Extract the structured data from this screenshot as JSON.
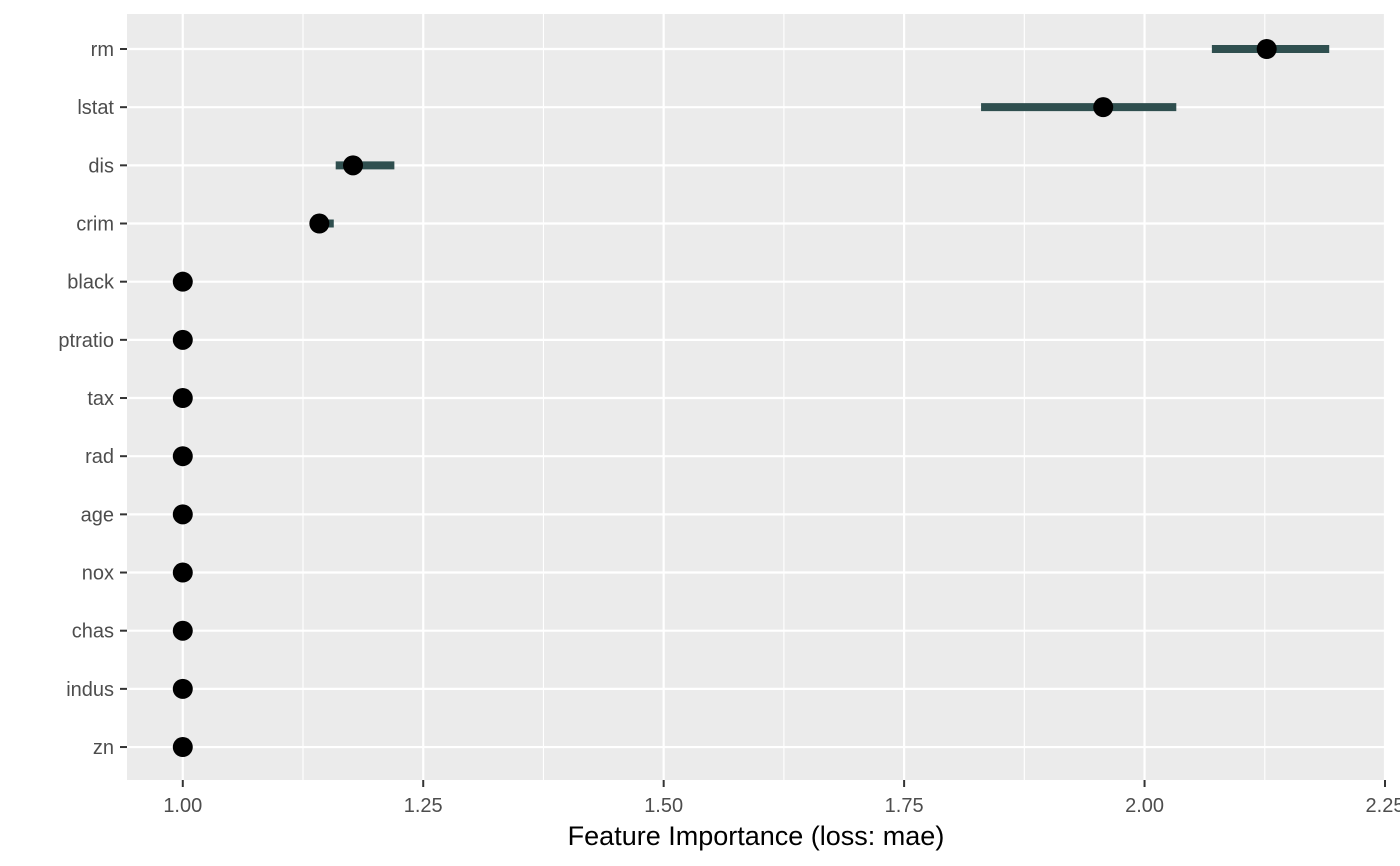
{
  "chart_data": {
    "type": "scatter",
    "title": "",
    "xlabel": "Feature Importance (loss: mae)",
    "ylabel": "",
    "xlim": [
      0.942,
      2.25
    ],
    "x_ticks": [
      1.0,
      1.25,
      1.5,
      1.75,
      2.0,
      2.25
    ],
    "x_tick_labels": [
      "1.00",
      "1.25",
      "1.50",
      "1.75",
      "2.00",
      "2.25"
    ],
    "grid": true,
    "legend": "none",
    "features": [
      {
        "name": "rm",
        "importance": 2.127,
        "lower": 2.07,
        "upper": 2.192
      },
      {
        "name": "lstat",
        "importance": 1.957,
        "lower": 1.83,
        "upper": 2.033
      },
      {
        "name": "dis",
        "importance": 1.177,
        "lower": 1.159,
        "upper": 1.22
      },
      {
        "name": "crim",
        "importance": 1.142,
        "lower": 1.14,
        "upper": 1.157
      },
      {
        "name": "black",
        "importance": 1.0,
        "lower": 1.0,
        "upper": 1.0
      },
      {
        "name": "ptratio",
        "importance": 1.0,
        "lower": 1.0,
        "upper": 1.0
      },
      {
        "name": "tax",
        "importance": 1.0,
        "lower": 1.0,
        "upper": 1.0
      },
      {
        "name": "rad",
        "importance": 1.0,
        "lower": 1.0,
        "upper": 1.0
      },
      {
        "name": "age",
        "importance": 1.0,
        "lower": 1.0,
        "upper": 1.0
      },
      {
        "name": "nox",
        "importance": 1.0,
        "lower": 1.0,
        "upper": 1.0
      },
      {
        "name": "chas",
        "importance": 1.0,
        "lower": 1.0,
        "upper": 1.0
      },
      {
        "name": "indus",
        "importance": 1.0,
        "lower": 1.0,
        "upper": 1.0
      },
      {
        "name": "zn",
        "importance": 1.0,
        "lower": 1.0,
        "upper": 1.0
      }
    ],
    "colors": {
      "panel_background": "#ebebeb",
      "grid_major": "#ffffff",
      "interval": "#2f4f4f",
      "point": "#000000",
      "tick_text": "#4d4d4d",
      "axis_title": "#000000"
    }
  }
}
